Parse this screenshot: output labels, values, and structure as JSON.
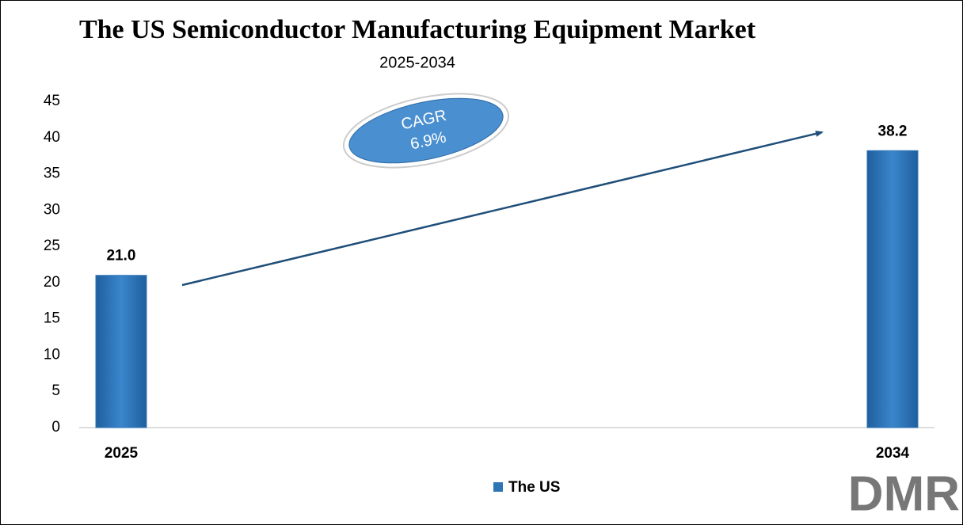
{
  "chart_data": {
    "type": "bar",
    "title": "The US Semiconductor Manufacturing Equipment Market",
    "subtitle": "2025-2034",
    "categories": [
      "2025",
      "2034"
    ],
    "series": [
      {
        "name": "The US",
        "color": "#2e75b6",
        "values": [
          21.0,
          38.2
        ],
        "value_labels": [
          "21.0",
          "38.2"
        ]
      }
    ],
    "ylim": [
      0,
      45
    ],
    "yticks": [
      0,
      5,
      10,
      15,
      20,
      25,
      30,
      35,
      40,
      45
    ],
    "grid": false,
    "legend": "bottom",
    "annotation": {
      "label": "CAGR",
      "value": "6.9%"
    },
    "logo": "DMR"
  }
}
